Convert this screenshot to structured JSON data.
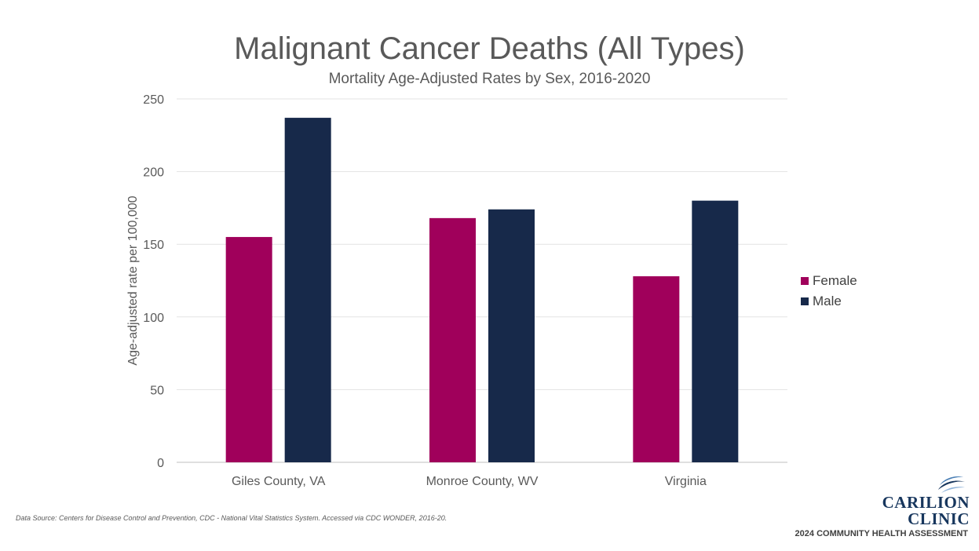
{
  "chart_data": {
    "type": "bar",
    "title": "Malignant Cancer Deaths (All Types)",
    "subtitle": "Mortality Age-Adjusted Rates by Sex, 2016-2020",
    "categories": [
      "Giles County, VA",
      "Monroe County, WV",
      "Virginia"
    ],
    "series": [
      {
        "name": "Female",
        "values": [
          155,
          168,
          128
        ],
        "color": "#a0005b"
      },
      {
        "name": "Male",
        "values": [
          237,
          174,
          180
        ],
        "color": "#17294a"
      }
    ],
    "xlabel": "",
    "ylabel": "Age-adjusted rate per 100,000",
    "ylim": [
      0,
      250
    ],
    "yticks": [
      "0",
      "50",
      "100",
      "150",
      "200",
      "250"
    ],
    "grid": true,
    "legend": "right"
  },
  "footer": {
    "source": "Data Source: Centers for Disease Control and Prevention, CDC - National Vital Statistics System. Accessed via CDC WONDER, 2016-20.",
    "logo_line1": "CARILION",
    "logo_line2": "CLINIC",
    "assessment": "2024 COMMUNITY HEALTH ASSESSMENT"
  }
}
